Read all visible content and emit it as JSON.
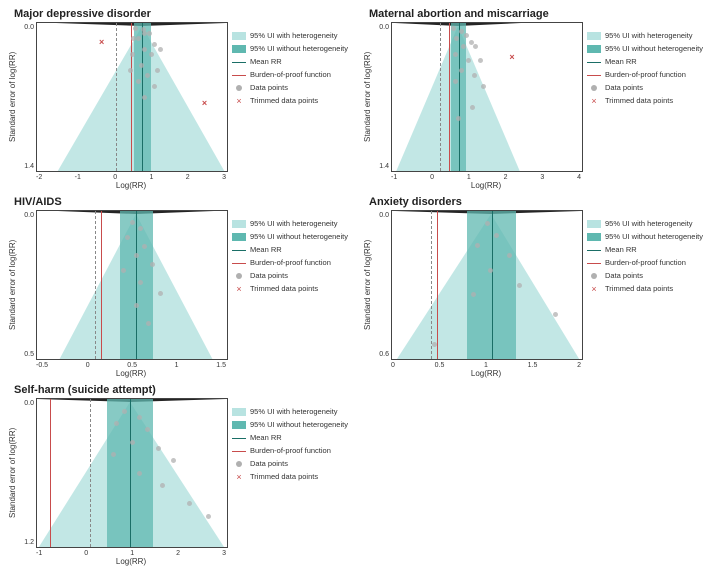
{
  "colors": {
    "ui_light": "#b8e3e1",
    "ui_dark": "#5fb8b0",
    "mean_line": "#1a6e66",
    "bop_line": "#c84c4c",
    "dash_line": "#888888",
    "point": "#b0b0b0",
    "trimmed": "#c84c4c",
    "axis": "#444444",
    "bg": "#ffffff"
  },
  "legend": {
    "ui_het": "95% UI with heterogeneity",
    "ui_nohet": "95% UI without heterogeneity",
    "mean": "Mean RR",
    "bop": "Burden-of-proof function",
    "data": "Data points",
    "trimmed": "Trimmed data points"
  },
  "axis_labels": {
    "x": "Log(RR)",
    "y": "Standard error of log(RR)"
  },
  "panels": [
    {
      "id": "mdd",
      "title": "Major depressive disorder",
      "xlim": [
        -2.5,
        3.5
      ],
      "ylim": [
        0.0,
        1.4
      ],
      "xticks": [
        -2,
        -1,
        0,
        1,
        2,
        3
      ],
      "yticks": [
        0.0,
        1.4
      ],
      "mean_x": 0.82,
      "bop_x": 0.48,
      "zero_x": 0.0,
      "band_nohet": [
        0.55,
        1.1
      ],
      "tri_het": [
        -1.9,
        3.5
      ],
      "points": [
        [
          0.6,
          0.05
        ],
        [
          0.85,
          0.06
        ],
        [
          0.9,
          0.1
        ],
        [
          1.05,
          0.1
        ],
        [
          0.7,
          0.15
        ],
        [
          0.55,
          0.15
        ],
        [
          1.2,
          0.2
        ],
        [
          0.9,
          0.25
        ],
        [
          0.5,
          0.3
        ],
        [
          1.1,
          0.3
        ],
        [
          1.4,
          0.25
        ],
        [
          0.8,
          0.4
        ],
        [
          0.45,
          0.45
        ],
        [
          1.3,
          0.45
        ],
        [
          1.0,
          0.5
        ],
        [
          0.7,
          0.55
        ],
        [
          1.2,
          0.6
        ],
        [
          0.9,
          0.7
        ]
      ],
      "trimmed": [
        [
          -0.4,
          0.18
        ],
        [
          2.85,
          0.76
        ]
      ]
    },
    {
      "id": "abortion",
      "title": "Maternal abortion and miscarriage",
      "xlim": [
        -1.5,
        4.5
      ],
      "ylim": [
        0.0,
        1.4
      ],
      "xticks": [
        -1,
        0,
        1,
        2,
        3,
        4
      ],
      "yticks": [
        0.0,
        1.4
      ],
      "mean_x": 0.6,
      "bop_x": 0.3,
      "zero_x": 0.0,
      "band_nohet": [
        0.35,
        0.85
      ],
      "tri_het": [
        -1.4,
        2.6
      ],
      "points": [
        [
          0.45,
          0.05
        ],
        [
          0.7,
          0.08
        ],
        [
          0.85,
          0.12
        ],
        [
          0.55,
          0.15
        ],
        [
          1.0,
          0.18
        ],
        [
          0.75,
          0.22
        ],
        [
          1.15,
          0.22
        ],
        [
          0.5,
          0.3
        ],
        [
          0.9,
          0.35
        ],
        [
          1.3,
          0.35
        ],
        [
          0.7,
          0.45
        ],
        [
          1.1,
          0.5
        ],
        [
          0.5,
          0.55
        ],
        [
          1.4,
          0.6
        ],
        [
          1.05,
          0.8
        ],
        [
          0.6,
          0.9
        ]
      ],
      "trimmed": [
        [
          2.35,
          0.33
        ]
      ]
    },
    {
      "id": "hiv",
      "title": "HIV/AIDS",
      "xlim": [
        -0.7,
        1.6
      ],
      "ylim": [
        0.0,
        0.5
      ],
      "xticks": [
        -0.5,
        0.0,
        0.5,
        1.0,
        1.5
      ],
      "yticks": [
        0.0,
        0.5
      ],
      "mean_x": 0.5,
      "bop_x": 0.08,
      "zero_x": 0.0,
      "band_nohet": [
        0.3,
        0.7
      ],
      "tri_het": [
        -0.45,
        1.45
      ],
      "points": [
        [
          0.45,
          0.04
        ],
        [
          0.55,
          0.06
        ],
        [
          0.4,
          0.09
        ],
        [
          0.6,
          0.12
        ],
        [
          0.5,
          0.15
        ],
        [
          0.7,
          0.18
        ],
        [
          0.35,
          0.2
        ],
        [
          0.55,
          0.24
        ],
        [
          0.8,
          0.28
        ],
        [
          0.5,
          0.32
        ],
        [
          0.65,
          0.38
        ]
      ],
      "trimmed": []
    },
    {
      "id": "anxiety",
      "title": "Anxiety disorders",
      "xlim": [
        -0.6,
        2.3
      ],
      "ylim": [
        0.0,
        0.6
      ],
      "xticks": [
        0.0,
        0.5,
        1.0,
        1.5,
        2.0
      ],
      "yticks": [
        0.0,
        0.6
      ],
      "mean_x": 0.92,
      "bop_x": 0.08,
      "zero_x": 0.0,
      "band_nohet": [
        0.55,
        1.3
      ],
      "tri_het": [
        -0.55,
        2.3
      ],
      "points": [
        [
          0.85,
          0.05
        ],
        [
          1.0,
          0.1
        ],
        [
          0.7,
          0.14
        ],
        [
          1.2,
          0.18
        ],
        [
          0.9,
          0.24
        ],
        [
          1.35,
          0.3
        ],
        [
          1.9,
          0.42
        ],
        [
          0.05,
          0.54
        ],
        [
          0.65,
          0.34
        ]
      ],
      "trimmed": []
    },
    {
      "id": "selfharm",
      "title": "Self-harm (suicide attempt)",
      "xlim": [
        -1.4,
        3.6
      ],
      "ylim": [
        0.0,
        1.2
      ],
      "xticks": [
        -1,
        0,
        1,
        2,
        3
      ],
      "yticks": [
        0.0,
        1.2
      ],
      "mean_x": 1.05,
      "bop_x": -1.05,
      "zero_x": 0.0,
      "band_nohet": [
        0.45,
        1.65
      ],
      "tri_het": [
        -1.4,
        3.6
      ],
      "points": [
        [
          0.9,
          0.1
        ],
        [
          1.3,
          0.15
        ],
        [
          0.7,
          0.2
        ],
        [
          1.5,
          0.25
        ],
        [
          1.1,
          0.35
        ],
        [
          1.8,
          0.4
        ],
        [
          0.6,
          0.45
        ],
        [
          2.2,
          0.5
        ],
        [
          1.3,
          0.6
        ],
        [
          1.9,
          0.7
        ],
        [
          2.6,
          0.85
        ],
        [
          3.1,
          0.95
        ]
      ],
      "trimmed": []
    }
  ]
}
